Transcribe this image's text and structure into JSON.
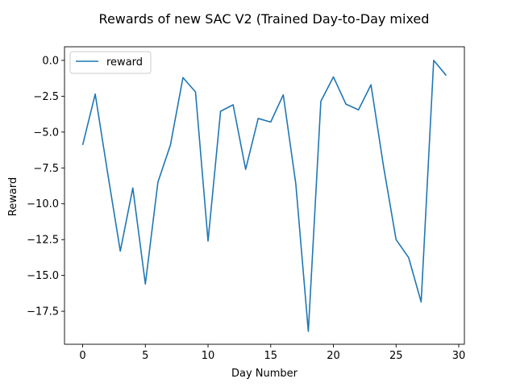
{
  "chart_data": {
    "type": "line",
    "title": "Rewards of new SAC V2 (Trained Day-to-Day mixed",
    "xlabel": "Day Number",
    "ylabel": "Reward",
    "xlim": [
      -1.45,
      30.45
    ],
    "ylim": [
      -19.8,
      0.95
    ],
    "xticks": [
      0,
      5,
      10,
      15,
      20,
      25,
      30
    ],
    "xtick_labels": [
      "0",
      "5",
      "10",
      "15",
      "20",
      "25",
      "30"
    ],
    "yticks": [
      0.0,
      -2.5,
      -5.0,
      -7.5,
      -10.0,
      -12.5,
      -15.0,
      -17.5
    ],
    "ytick_labels": [
      "0.0",
      "−2.5",
      "−5.0",
      "−7.5",
      "−10.0",
      "−12.5",
      "−15.0",
      "−17.5"
    ],
    "grid": false,
    "legend_position": "upper left",
    "series": [
      {
        "name": "reward",
        "color": "#1f77b4",
        "x": [
          0,
          1,
          2,
          3,
          4,
          5,
          6,
          7,
          8,
          9,
          10,
          11,
          12,
          13,
          14,
          15,
          16,
          17,
          18,
          19,
          20,
          21,
          22,
          23,
          24,
          25,
          26,
          27,
          28,
          29
        ],
        "y": [
          -5.9,
          -2.35,
          -7.9,
          -13.3,
          -8.9,
          -15.6,
          -8.5,
          -5.9,
          -1.2,
          -2.2,
          -12.6,
          -3.55,
          -3.1,
          -7.6,
          -4.05,
          -4.3,
          -2.4,
          -8.6,
          -18.9,
          -2.85,
          -1.15,
          -3.05,
          -3.45,
          -1.7,
          -7.4,
          -12.5,
          -13.75,
          -16.85,
          0.0,
          -1.05
        ]
      }
    ]
  }
}
